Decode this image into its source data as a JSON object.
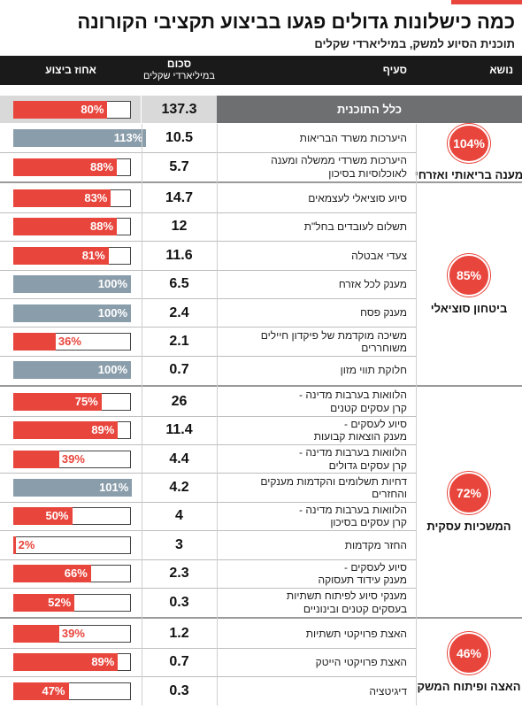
{
  "header": {
    "title": "כמה כישלונות גדולים פגעו בביצוע תקציבי הקורונה",
    "subtitle": "תוכנית הסיוע למשק, במיליארדי שקלים"
  },
  "table": {
    "columns": {
      "topic": "נושא",
      "item": "סעיף",
      "amount": [
        "סכום",
        "במיליארדי שקלים"
      ],
      "percent": "אחוז ביצוע"
    },
    "total": {
      "label": "כלל התוכנית",
      "amount": 137.3,
      "percent": 80,
      "percent_label": "80%",
      "color": "#e8453c"
    },
    "groups": [
      {
        "topic": "מענה בריאותי ואזרחי",
        "percent": 104,
        "percent_label": "104%",
        "rows": [
          {
            "item": [
              "היערכות משרד הבריאות"
            ],
            "amount": 10.5,
            "percent": 113,
            "percent_label": "113%",
            "color": "#8a9dab"
          },
          {
            "item": [
              "היערכות משרדי ממשלה ומענה",
              "לאוכלוסיות בסיכון"
            ],
            "amount": 5.7,
            "percent": 88,
            "percent_label": "88%",
            "color": "#e8453c"
          }
        ]
      },
      {
        "topic": "ביטחון סוציאלי",
        "percent": 85,
        "percent_label": "85%",
        "rows": [
          {
            "item": [
              "סיוע סוציאלי לעצמאים"
            ],
            "amount": 14.7,
            "percent": 83,
            "percent_label": "83%",
            "color": "#e8453c"
          },
          {
            "item": [
              "תשלום לעובדים בחל\"ת"
            ],
            "amount": 12,
            "percent": 88,
            "percent_label": "88%",
            "color": "#e8453c"
          },
          {
            "item": [
              "צעדי אבטלה"
            ],
            "amount": 11.6,
            "percent": 81,
            "percent_label": "81%",
            "color": "#e8453c"
          },
          {
            "item": [
              "מענק לכל אזרח"
            ],
            "amount": 6.5,
            "percent": 100,
            "percent_label": "100%",
            "color": "#8a9dab"
          },
          {
            "item": [
              "מענק פסח"
            ],
            "amount": 2.4,
            "percent": 100,
            "percent_label": "100%",
            "color": "#8a9dab"
          },
          {
            "item": [
              "משיכה מוקדמת של פיקדון חיילים",
              "משוחררים"
            ],
            "amount": 2.1,
            "percent": 36,
            "percent_label": "36%",
            "color": "#e8453c"
          },
          {
            "item": [
              "חלוקת תווי מזון"
            ],
            "amount": 0.7,
            "percent": 100,
            "percent_label": "100%",
            "color": "#8a9dab"
          }
        ]
      },
      {
        "topic": "המשכיות עסקית",
        "percent": 72,
        "percent_label": "72%",
        "rows": [
          {
            "item": [
              "הלוואות בערבות מדינה -",
              "קרן עסקים קטנים"
            ],
            "amount": 26,
            "percent": 75,
            "percent_label": "75%",
            "color": "#e8453c"
          },
          {
            "item": [
              "סיוע לעסקים -",
              "מענק הוצאות קבועות"
            ],
            "amount": 11.4,
            "percent": 89,
            "percent_label": "89%",
            "color": "#e8453c"
          },
          {
            "item": [
              "הלוואות בערבות מדינה -",
              "קרן עסקים גדולים"
            ],
            "amount": 4.4,
            "percent": 39,
            "percent_label": "39%",
            "color": "#e8453c"
          },
          {
            "item": [
              "דחיות תשלומים והקדמות מענקים",
              "והחזרים"
            ],
            "amount": 4.2,
            "percent": 101,
            "percent_label": "101%",
            "color": "#8a9dab"
          },
          {
            "item": [
              "הלוואות בערבות מדינה -",
              "קרן עסקים בסיכון"
            ],
            "amount": 4,
            "percent": 50,
            "percent_label": "50%",
            "color": "#e8453c"
          },
          {
            "item": [
              "החזר מקדמות"
            ],
            "amount": 3,
            "percent": 2,
            "percent_label": "2%",
            "color": "#e8453c"
          },
          {
            "item": [
              "סיוע לעסקים -",
              "מענק עידוד תעסוקה"
            ],
            "amount": 2.3,
            "percent": 66,
            "percent_label": "66%",
            "color": "#e8453c"
          },
          {
            "item": [
              "מענקי סיוע לפיתוח תשתיות",
              "בעסקים קטנים ובינוניים"
            ],
            "amount": 0.3,
            "percent": 52,
            "percent_label": "52%",
            "color": "#e8453c"
          }
        ]
      },
      {
        "topic": "האצה ופיתוח המשק",
        "percent": 46,
        "percent_label": "46%",
        "rows": [
          {
            "item": [
              "האצת פרויקטי תשתיות"
            ],
            "amount": 1.2,
            "percent": 39,
            "percent_label": "39%",
            "color": "#e8453c"
          },
          {
            "item": [
              "האצת פרויקטי הייטק"
            ],
            "amount": 0.7,
            "percent": 89,
            "percent_label": "89%",
            "color": "#e8453c"
          },
          {
            "item": [
              "דיגיטציה"
            ],
            "amount": 0.3,
            "percent": 47,
            "percent_label": "47%",
            "color": "#e8453c"
          }
        ]
      }
    ]
  }
}
